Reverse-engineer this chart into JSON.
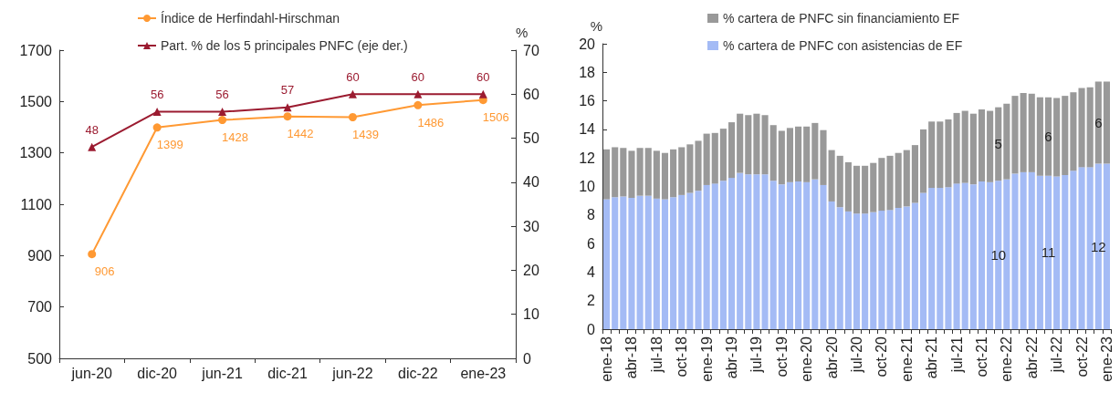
{
  "chart_data": [
    {
      "type": "line",
      "categories": [
        "jun-20",
        "dic-20",
        "jun-21",
        "dic-21",
        "jun-22",
        "dic-22",
        "ene-23"
      ],
      "series": [
        {
          "name": "Índice de Herfindahl-Hirschman",
          "color": "#ff9933",
          "marker": "circle",
          "values": [
            906,
            1399,
            1428,
            1442,
            1439,
            1486,
            1506
          ]
        },
        {
          "name": "Part. % de los 5 principales PNFC (eje der.)",
          "color": "#9b1b30",
          "marker": "triangle",
          "axis": "y2",
          "values": [
            48,
            56,
            56,
            57,
            60,
            60,
            60
          ]
        }
      ],
      "ylim": [
        500,
        1700
      ],
      "yticks": [
        500,
        700,
        900,
        1100,
        1300,
        1500,
        1700
      ],
      "y2lim": [
        0,
        70
      ],
      "y2ticks": [
        0,
        10,
        20,
        30,
        40,
        50,
        60,
        70
      ],
      "y2label": "%",
      "data_labels": true,
      "grid": false,
      "legend": "top"
    },
    {
      "type": "bar",
      "stacked": true,
      "categories": [
        "ene-18",
        null,
        null,
        "abr-18",
        null,
        null,
        "jul-18",
        null,
        null,
        "oct-18",
        null,
        null,
        "ene-19",
        null,
        null,
        "abr-19",
        null,
        null,
        "jul-19",
        null,
        null,
        "oct-19",
        null,
        null,
        "ene-20",
        null,
        null,
        "abr-20",
        null,
        null,
        "jul-20",
        null,
        null,
        "oct-20",
        null,
        null,
        "ene-21",
        null,
        null,
        "abr-21",
        null,
        null,
        "jul-21",
        null,
        null,
        "oct-21",
        null,
        null,
        "ene-22",
        null,
        null,
        "abr-22",
        null,
        null,
        "jul-22",
        null,
        null,
        "oct-22",
        null,
        null,
        "ene-23"
      ],
      "series": [
        {
          "name": "% cartera de PNFC con asistencias de EF",
          "color": "#a4bbf5",
          "values": [
            9.1,
            9.25,
            9.3,
            9.2,
            9.35,
            9.35,
            9.15,
            9.1,
            9.25,
            9.4,
            9.55,
            9.7,
            10.1,
            10.2,
            10.4,
            10.6,
            10.95,
            10.85,
            10.85,
            10.85,
            10.4,
            10.15,
            10.3,
            10.35,
            10.3,
            10.5,
            10.1,
            8.95,
            8.55,
            8.25,
            8.1,
            8.1,
            8.2,
            8.3,
            8.35,
            8.5,
            8.6,
            8.85,
            9.55,
            9.9,
            9.9,
            9.95,
            10.2,
            10.25,
            10.15,
            10.35,
            10.3,
            10.4,
            10.5,
            10.9,
            11.0,
            11.0,
            10.75,
            10.75,
            10.7,
            10.8,
            11.1,
            11.35,
            11.35,
            11.6,
            11.6
          ],
          "value_labels": [
            null,
            null,
            null,
            null,
            null,
            null,
            null,
            null,
            null,
            null,
            null,
            null,
            null,
            null,
            null,
            null,
            null,
            null,
            null,
            null,
            null,
            null,
            null,
            null,
            null,
            null,
            null,
            null,
            null,
            null,
            null,
            null,
            null,
            null,
            null,
            null,
            null,
            null,
            null,
            null,
            null,
            null,
            null,
            null,
            null,
            null,
            null,
            "10",
            null,
            null,
            null,
            null,
            null,
            "11",
            null,
            null,
            null,
            null,
            null,
            "12",
            null
          ]
        },
        {
          "name": "% cartera de PNFC sin financiamiento EF",
          "color": "#999999",
          "values": [
            3.5,
            3.5,
            3.4,
            3.3,
            3.35,
            3.35,
            3.35,
            3.25,
            3.35,
            3.35,
            3.4,
            3.5,
            3.6,
            3.55,
            3.65,
            3.9,
            4.15,
            4.15,
            4.25,
            4.15,
            3.9,
            3.75,
            3.8,
            3.85,
            3.9,
            3.95,
            3.85,
            3.6,
            3.6,
            3.45,
            3.35,
            3.35,
            3.45,
            3.7,
            3.8,
            3.85,
            3.95,
            4.05,
            4.45,
            4.65,
            4.65,
            4.75,
            4.95,
            5.05,
            4.95,
            5.05,
            5.0,
            5.15,
            5.3,
            5.45,
            5.55,
            5.5,
            5.5,
            5.5,
            5.5,
            5.55,
            5.5,
            5.55,
            5.6,
            5.75,
            5.75
          ],
          "value_labels": [
            null,
            null,
            null,
            null,
            null,
            null,
            null,
            null,
            null,
            null,
            null,
            null,
            null,
            null,
            null,
            null,
            null,
            null,
            null,
            null,
            null,
            null,
            null,
            null,
            null,
            null,
            null,
            null,
            null,
            null,
            null,
            null,
            null,
            null,
            null,
            null,
            null,
            null,
            null,
            null,
            null,
            null,
            null,
            null,
            null,
            null,
            null,
            "5",
            null,
            null,
            null,
            null,
            null,
            "6",
            null,
            null,
            null,
            null,
            null,
            "6",
            null
          ]
        }
      ],
      "ylim": [
        0,
        20
      ],
      "yticks": [
        0,
        2,
        4,
        6,
        8,
        10,
        12,
        14,
        16,
        18,
        20
      ],
      "ylabel": "%",
      "grid": false,
      "legend": "top left"
    }
  ]
}
